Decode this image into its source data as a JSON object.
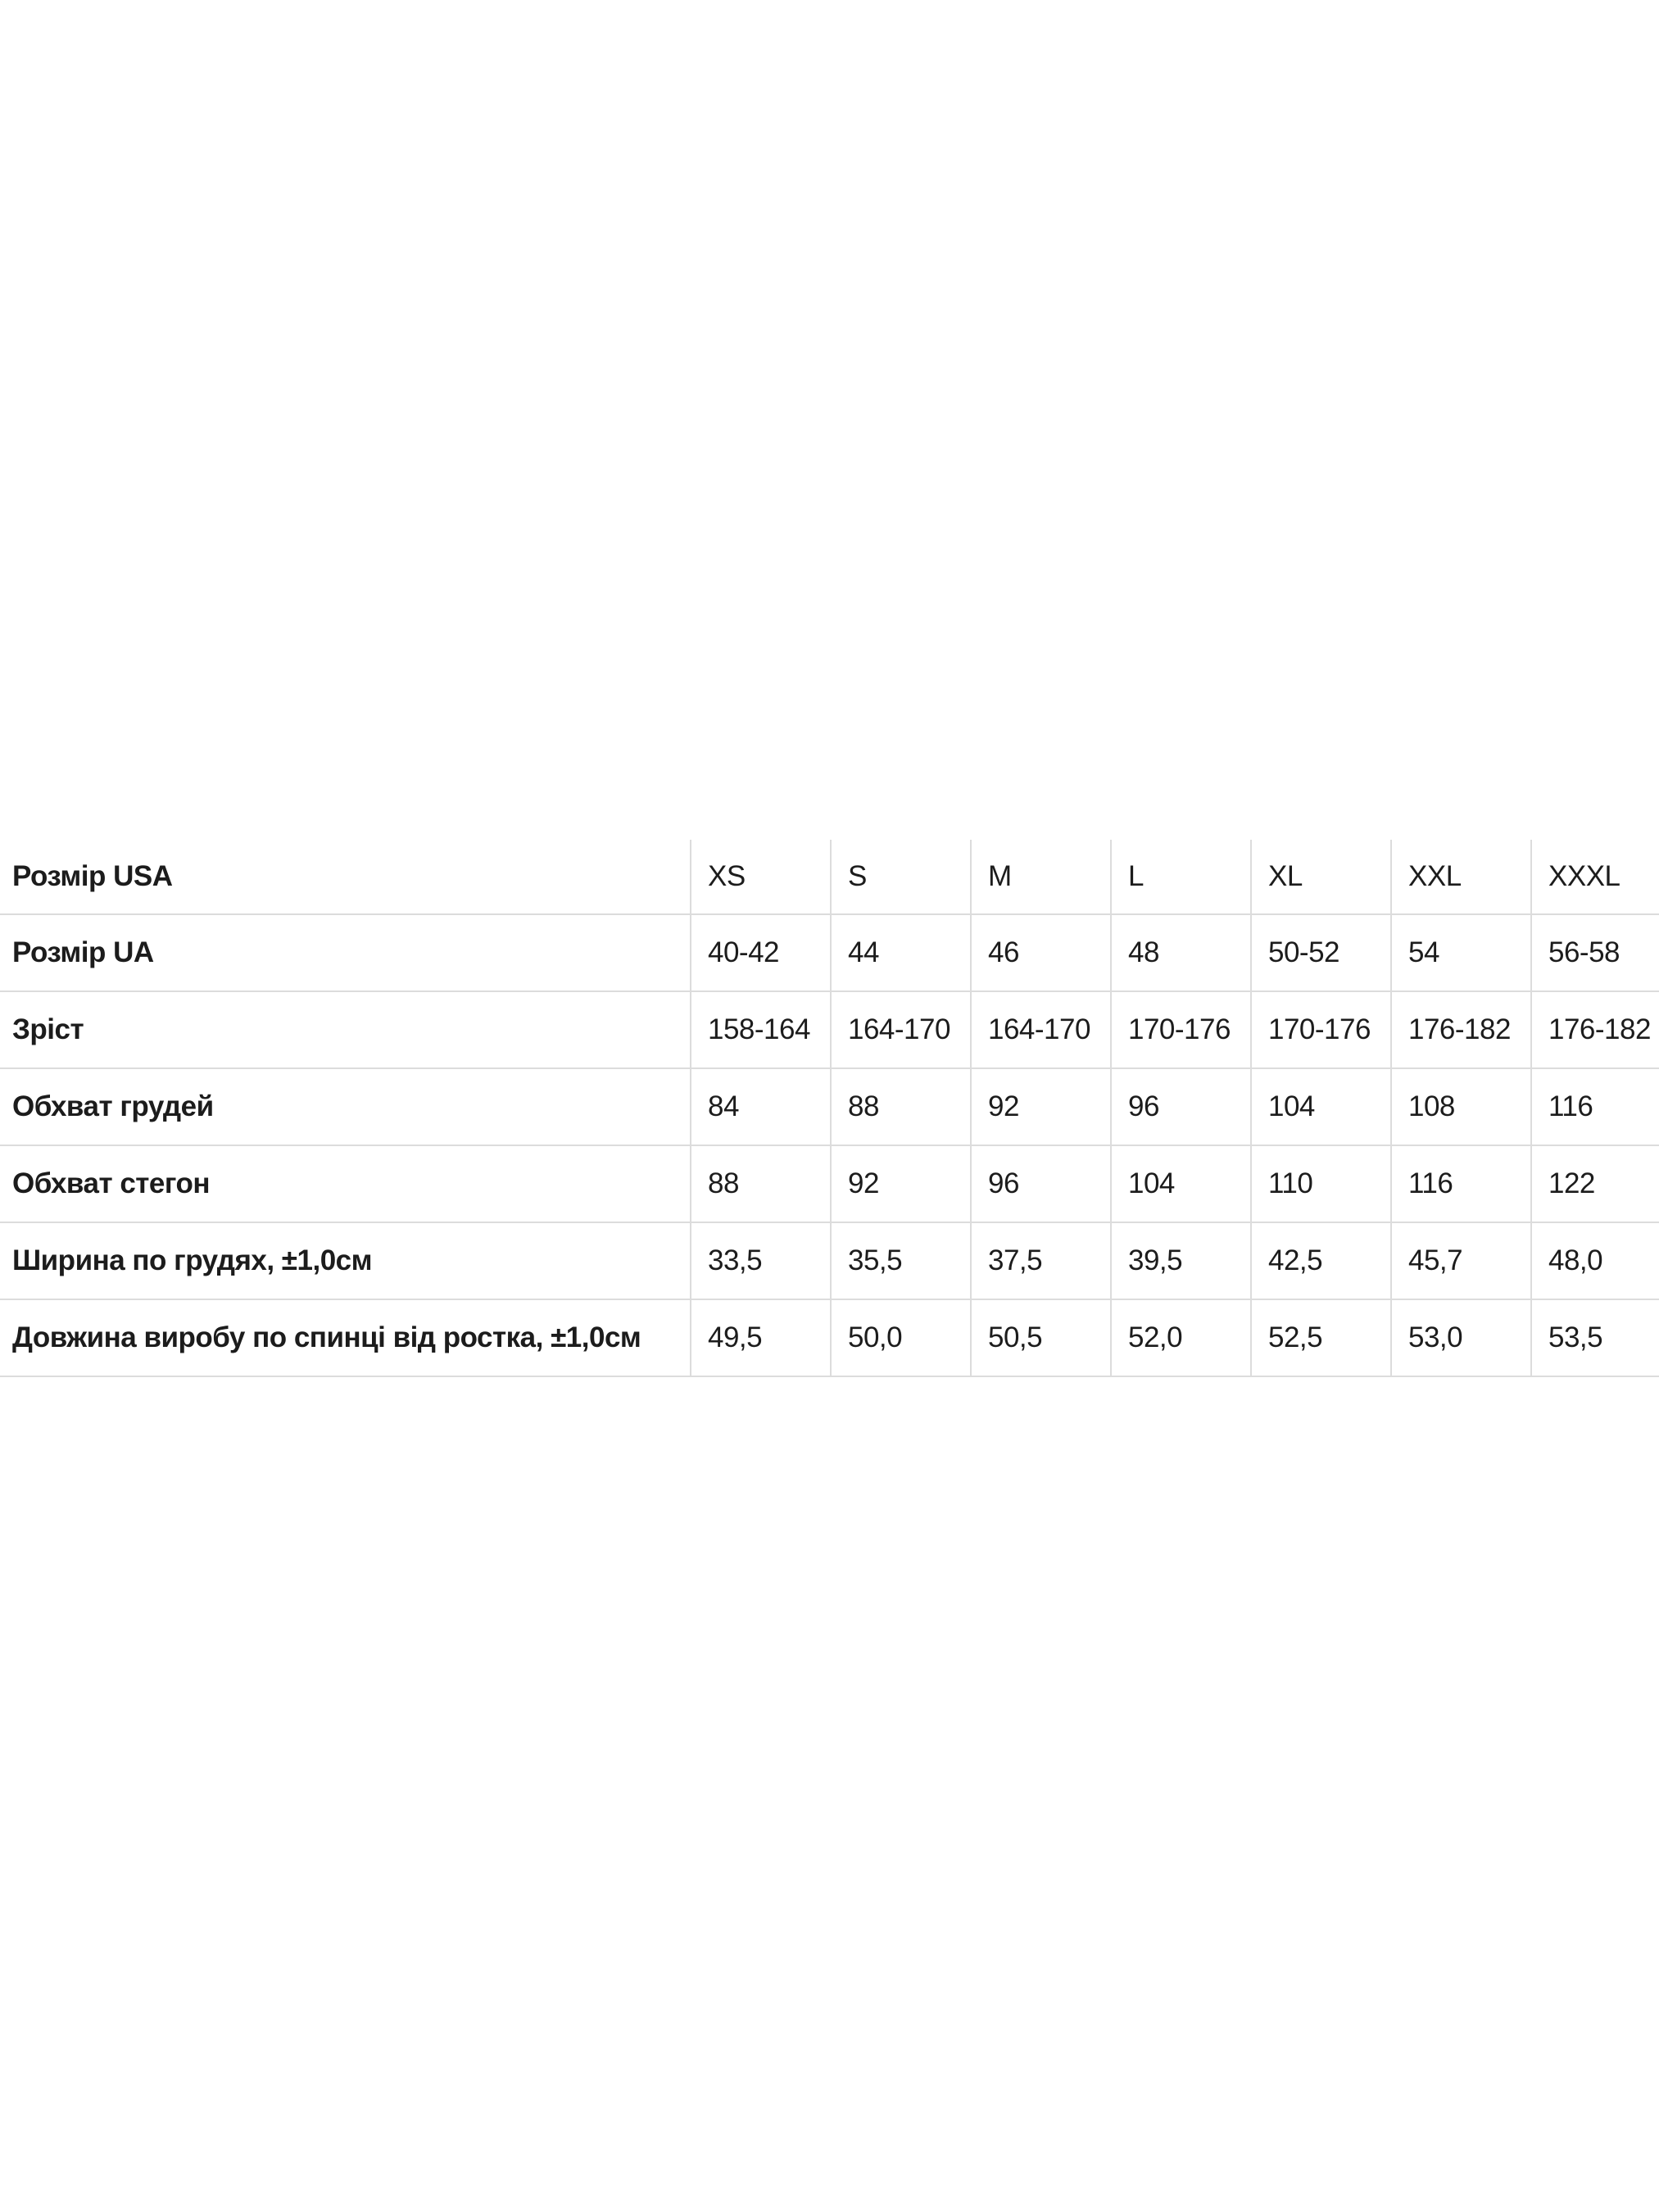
{
  "size_table": {
    "rows": [
      {
        "label": "Розмір USA",
        "values": [
          "XS",
          "S",
          "M",
          "L",
          "XL",
          "XXL",
          "XXXL"
        ]
      },
      {
        "label": "Розмір UA",
        "values": [
          "40-42",
          "44",
          "46",
          "48",
          "50-52",
          "54",
          "56-58"
        ]
      },
      {
        "label": "Зріст",
        "values": [
          "158-164",
          "164-170",
          "164-170",
          "170-176",
          "170-176",
          "176-182",
          "176-182"
        ]
      },
      {
        "label": "Обхват грудей",
        "values": [
          "84",
          "88",
          "92",
          "96",
          "104",
          "108",
          "116"
        ]
      },
      {
        "label": "Обхват стегон",
        "values": [
          "88",
          "92",
          "96",
          "104",
          "110",
          "116",
          "122"
        ]
      },
      {
        "label": "Ширина по грудях, ±1,0см",
        "values": [
          "33,5",
          "35,5",
          "37,5",
          "39,5",
          "42,5",
          "45,7",
          "48,0"
        ]
      },
      {
        "label": "Довжина виробу по спинці від ростка, ±1,0см",
        "values": [
          "49,5",
          "50,0",
          "50,5",
          "52,0",
          "52,5",
          "53,0",
          "53,5"
        ]
      }
    ]
  }
}
